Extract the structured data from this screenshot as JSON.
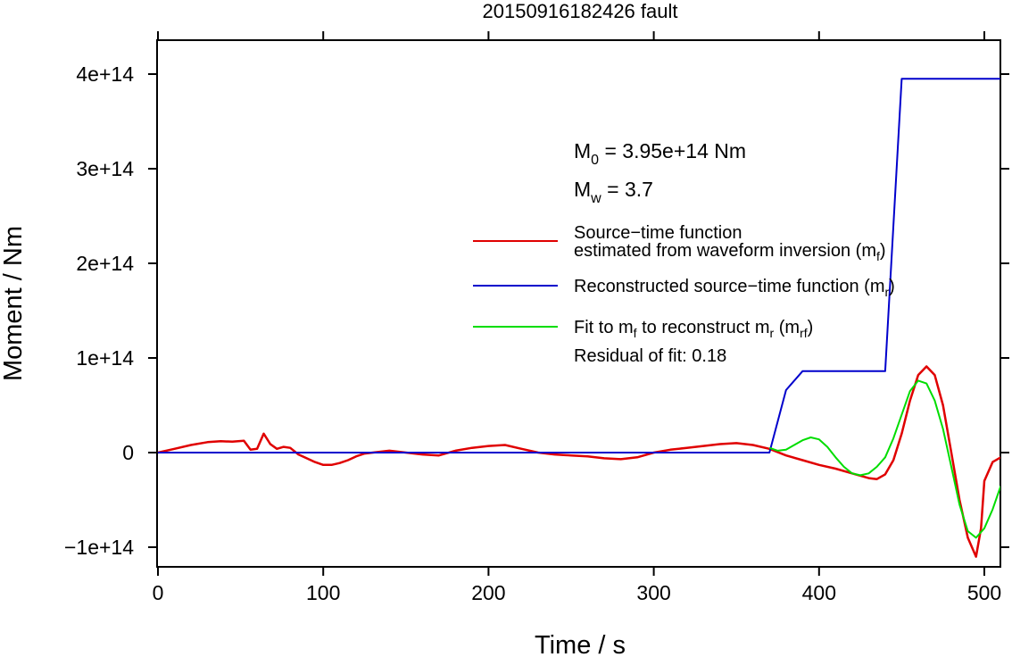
{
  "chart_data": {
    "type": "line",
    "title": "20150916182426 fault",
    "xlabel": "Time / s",
    "ylabel": "Moment / Nm",
    "xlim": [
      0,
      510
    ],
    "ylim": [
      -120000000000000.0,
      440000000000000.0
    ],
    "x_ticks": [
      {
        "value": 0,
        "label": "0"
      },
      {
        "value": 100,
        "label": "100"
      },
      {
        "value": 200,
        "label": "200"
      },
      {
        "value": 300,
        "label": "300"
      },
      {
        "value": 400,
        "label": "400"
      },
      {
        "value": 500,
        "label": "500"
      }
    ],
    "y_ticks": [
      {
        "value": -100000000000000.0,
        "label": "−1e+14"
      },
      {
        "value": 0,
        "label": "0"
      },
      {
        "value": 100000000000000.0,
        "label": "1e+14"
      },
      {
        "value": 200000000000000.0,
        "label": "2e+14"
      },
      {
        "value": 300000000000000.0,
        "label": "3e+14"
      },
      {
        "value": 400000000000000.0,
        "label": "4e+14"
      }
    ],
    "grid": false,
    "legend_position": "center-right",
    "annotations": {
      "m0": {
        "main": "M",
        "sub": "0",
        "rest": " = 3.95e+14 Nm"
      },
      "mw": {
        "main": "M",
        "sub": "w",
        "rest": " = 3.7"
      },
      "residual": "Residual of fit: 0.18"
    },
    "series": [
      {
        "key": "mf",
        "legend_line1": "Source−time function",
        "legend_line2": "estimated from waveform inversion (m",
        "legend_sub": "f",
        "legend_tail": ")",
        "color": "#e00000",
        "x": [
          0,
          10,
          20,
          30,
          38,
          45,
          52,
          56,
          60,
          64,
          68,
          72,
          76,
          80,
          85,
          90,
          95,
          100,
          105,
          110,
          115,
          120,
          125,
          130,
          140,
          150,
          160,
          170,
          180,
          190,
          200,
          210,
          220,
          230,
          240,
          250,
          260,
          270,
          280,
          290,
          300,
          310,
          320,
          330,
          340,
          350,
          360,
          370,
          380,
          390,
          400,
          410,
          420,
          430,
          435,
          440,
          445,
          450,
          455,
          460,
          465,
          470,
          475,
          480,
          485,
          490,
          495,
          498,
          500,
          505,
          510
        ],
        "y": [
          0,
          4000000000000.0,
          8000000000000.0,
          11000000000000.0,
          12000000000000.0,
          11500000000000.0,
          12500000000000.0,
          3000000000000.0,
          4000000000000.0,
          20000000000000.0,
          9000000000000.0,
          4000000000000.0,
          6000000000000.0,
          5000000000000.0,
          -2000000000000.0,
          -6000000000000.0,
          -10000000000000.0,
          -13000000000000.0,
          -13000000000000.0,
          -11000000000000.0,
          -8000000000000.0,
          -4000000000000.0,
          -1000000000000.0,
          0,
          2000000000000.0,
          0,
          -2000000000000.0,
          -3000000000000.0,
          2000000000000.0,
          5000000000000.0,
          7000000000000.0,
          8000000000000.0,
          4000000000000.0,
          0,
          -2000000000000.0,
          -3000000000000.0,
          -4000000000000.0,
          -6000000000000.0,
          -7000000000000.0,
          -5000000000000.0,
          0,
          3000000000000.0,
          5000000000000.0,
          7000000000000.0,
          9000000000000.0,
          10000000000000.0,
          8000000000000.0,
          4000000000000.0,
          -3000000000000.0,
          -8000000000000.0,
          -13000000000000.0,
          -17000000000000.0,
          -22000000000000.0,
          -27000000000000.0,
          -28000000000000.0,
          -23000000000000.0,
          -8000000000000.0,
          20000000000000.0,
          55000000000000.0,
          82000000000000.0,
          91000000000000.0,
          82000000000000.0,
          50000000000000.0,
          0,
          -50000000000000.0,
          -90000000000000.0,
          -110000000000000.0,
          -80000000000000.0,
          -30000000000000.0,
          -10000000000000.0,
          -5000000000000.0
        ]
      },
      {
        "key": "mr",
        "legend_line1": "Reconstructed source−time function (m",
        "legend_sub": "r",
        "legend_tail": ")",
        "color": "#0000cc",
        "x": [
          0,
          370,
          380,
          390,
          440,
          450,
          510
        ],
        "y": [
          0,
          0,
          66000000000000.0,
          86000000000000.0,
          86000000000000.0,
          395000000000000.0,
          395000000000000.0
        ]
      },
      {
        "key": "mrf",
        "legend_line1": "Fit to m",
        "legend_sub_a": "f",
        "legend_mid": " to reconstruct m",
        "legend_sub_b": "r",
        "legend_mid2": " (m",
        "legend_sub_c": "rf",
        "legend_tail": ")",
        "color": "#00dd00",
        "x": [
          370,
          375,
          380,
          385,
          390,
          395,
          400,
          405,
          410,
          415,
          420,
          425,
          430,
          435,
          440,
          445,
          450,
          455,
          460,
          465,
          470,
          475,
          480,
          485,
          490,
          495,
          500,
          505,
          510
        ],
        "y": [
          5000000000000.0,
          2000000000000.0,
          3000000000000.0,
          8000000000000.0,
          13000000000000.0,
          16000000000000.0,
          14000000000000.0,
          6000000000000.0,
          -5000000000000.0,
          -15000000000000.0,
          -22000000000000.0,
          -24000000000000.0,
          -22000000000000.0,
          -15000000000000.0,
          -5000000000000.0,
          15000000000000.0,
          40000000000000.0,
          65000000000000.0,
          76000000000000.0,
          73000000000000.0,
          55000000000000.0,
          25000000000000.0,
          -15000000000000.0,
          -55000000000000.0,
          -83000000000000.0,
          -90000000000000.0,
          -80000000000000.0,
          -60000000000000.0,
          -35000000000000.0
        ]
      }
    ]
  }
}
